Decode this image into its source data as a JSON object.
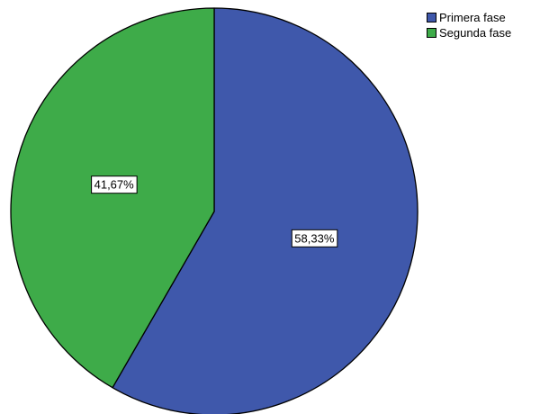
{
  "chart_data": {
    "type": "pie",
    "slices": [
      {
        "label": "Primera fase",
        "value": 58.33,
        "value_label": "58,33%",
        "color": "#3F58AB"
      },
      {
        "label": "Segunda fase",
        "value": 41.67,
        "value_label": "41,67%",
        "color": "#3EAB49"
      }
    ],
    "start": "12 o'clock",
    "direction": "clockwise",
    "legend_position": "top-right"
  }
}
